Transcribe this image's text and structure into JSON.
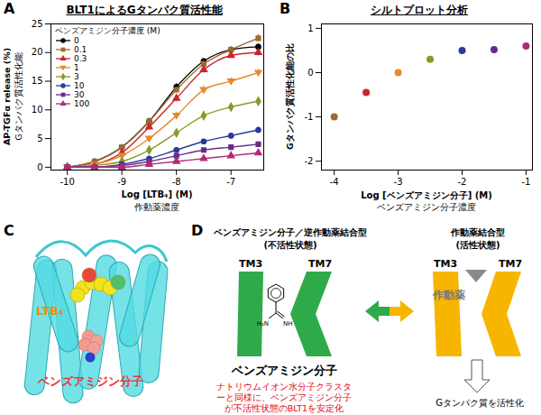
{
  "chart_data": [
    {
      "panel": "A",
      "type": "line",
      "title": "BLT1によるGタンパク質活性能",
      "x_label": "Log [LTB₄] (M)",
      "x_label2": "作動薬濃度",
      "y_label": "AP-TGFα release (%)",
      "y_label2": "Gタンパク質活性化能",
      "legend_title": "ベンズアミジン分子濃度 (M)",
      "legend": "top-left",
      "x": [
        -10,
        -9.5,
        -9,
        -8.5,
        -8,
        -7.5,
        -7,
        -6.5
      ],
      "series": [
        {
          "name": "0",
          "color": "#000000",
          "marker": "circle",
          "values": [
            0,
            1,
            3.5,
            8,
            14,
            18.5,
            20.5,
            21
          ],
          "errors": [
            0.2,
            0.3,
            0.4,
            0.5,
            0.6,
            0.5,
            0.5,
            0.5
          ]
        },
        {
          "name": "0.1",
          "color": "#9c6b2e",
          "marker": "square",
          "values": [
            0,
            1,
            3.5,
            8,
            13.5,
            18,
            20.5,
            22.5
          ],
          "errors": [
            0.2,
            0.3,
            0.4,
            0.6,
            0.5,
            0.6,
            0.5,
            0.6
          ]
        },
        {
          "name": "0.3",
          "color": "#c8262c",
          "marker": "triangle",
          "values": [
            0,
            0.5,
            2.5,
            7,
            12,
            17,
            19.5,
            20
          ],
          "errors": [
            0.2,
            0.3,
            0.4,
            0.5,
            0.6,
            0.6,
            0.5,
            0.6
          ]
        },
        {
          "name": "1",
          "color": "#e8892c",
          "marker": "triangle-down",
          "values": [
            0,
            0.5,
            2,
            5,
            9,
            13.5,
            15,
            16.5
          ],
          "errors": [
            0.2,
            0.3,
            0.3,
            0.5,
            0.6,
            0.7,
            0.6,
            0.6
          ]
        },
        {
          "name": "3",
          "color": "#8a9a2a",
          "marker": "diamond",
          "values": [
            0,
            0.3,
            1,
            3,
            6,
            9,
            10.5,
            11.5
          ],
          "errors": [
            0.2,
            0.2,
            0.3,
            0.4,
            0.5,
            0.6,
            0.5,
            0.6
          ]
        },
        {
          "name": "10",
          "color": "#2a3a9a",
          "marker": "circle",
          "values": [
            0,
            0,
            0.5,
            1.5,
            3,
            4.5,
            5.5,
            6.5
          ],
          "errors": [
            0.2,
            0.2,
            0.2,
            0.3,
            0.4,
            0.4,
            0.4,
            0.5
          ]
        },
        {
          "name": "30",
          "color": "#6a2a8a",
          "marker": "square",
          "values": [
            0,
            0,
            0.3,
            1,
            2,
            3,
            3.5,
            4
          ],
          "errors": [
            0.2,
            0.2,
            0.2,
            0.3,
            0.3,
            0.3,
            0.4,
            0.4
          ]
        },
        {
          "name": "100",
          "color": "#b02a7a",
          "marker": "triangle",
          "values": [
            0,
            0,
            0,
            0.5,
            1,
            1.5,
            2,
            2.5
          ],
          "errors": [
            0.2,
            0.2,
            0.2,
            0.2,
            0.3,
            0.3,
            0.3,
            0.3
          ]
        }
      ],
      "xlim": [
        -10.3,
        -6.4
      ],
      "xticks": [
        -10,
        -9,
        -8,
        -7
      ],
      "ylim": [
        -0.5,
        25
      ],
      "yticks": [
        0,
        5,
        10,
        15,
        20,
        25
      ]
    },
    {
      "panel": "B",
      "type": "scatter",
      "title": "シルトプロット分析",
      "x_label": "Log [ベンズアミジン分子] (M)",
      "x_label2": "ベンズアミジン分子濃度",
      "y_label": "Gタンパク質活性化能の比",
      "x": [
        -4,
        -3.5,
        -3,
        -2.5,
        -2,
        -1.5,
        -1
      ],
      "values": [
        -1,
        -0.45,
        0,
        0.3,
        0.5,
        0.52,
        0.6
      ],
      "colors": [
        "#9c6b2e",
        "#c8262c",
        "#e8892c",
        "#8a9a2a",
        "#2a3a9a",
        "#6a2a8a",
        "#b02a7a"
      ],
      "marker": "circle",
      "xlim": [
        -4.2,
        -0.9
      ],
      "xticks": [
        -4,
        -3,
        -2,
        -1
      ],
      "ylim": [
        -2.2,
        1.1
      ],
      "yticks": [
        -2,
        -1,
        0,
        1
      ]
    }
  ],
  "diagram": {
    "C": {
      "panel": "C",
      "ligand_label": "LTB₄",
      "molecule_label": "ベンズアミジン分子"
    },
    "D": {
      "panel": "D",
      "inactive": {
        "title": "ベンズアミジン分子／逆作動薬結合型",
        "state": "(不活性状態)",
        "tm_left": "TM3",
        "tm_right": "TM7",
        "molecule": "ベンズアミジン分子",
        "chem": [
          "H₂N",
          "NH"
        ],
        "note": [
          "ナトリウムイオン水分子クラスタ",
          "ーと同様に、ベンズアミジン分子",
          "が不活性状態のBLT1を安定化"
        ]
      },
      "active": {
        "title": "作動薬結合型",
        "state": "(活性状態)",
        "tm_left": "TM3",
        "tm_right": "TM7",
        "agonist": "作動薬",
        "effect": "Gタンパク質を活性化"
      }
    }
  }
}
